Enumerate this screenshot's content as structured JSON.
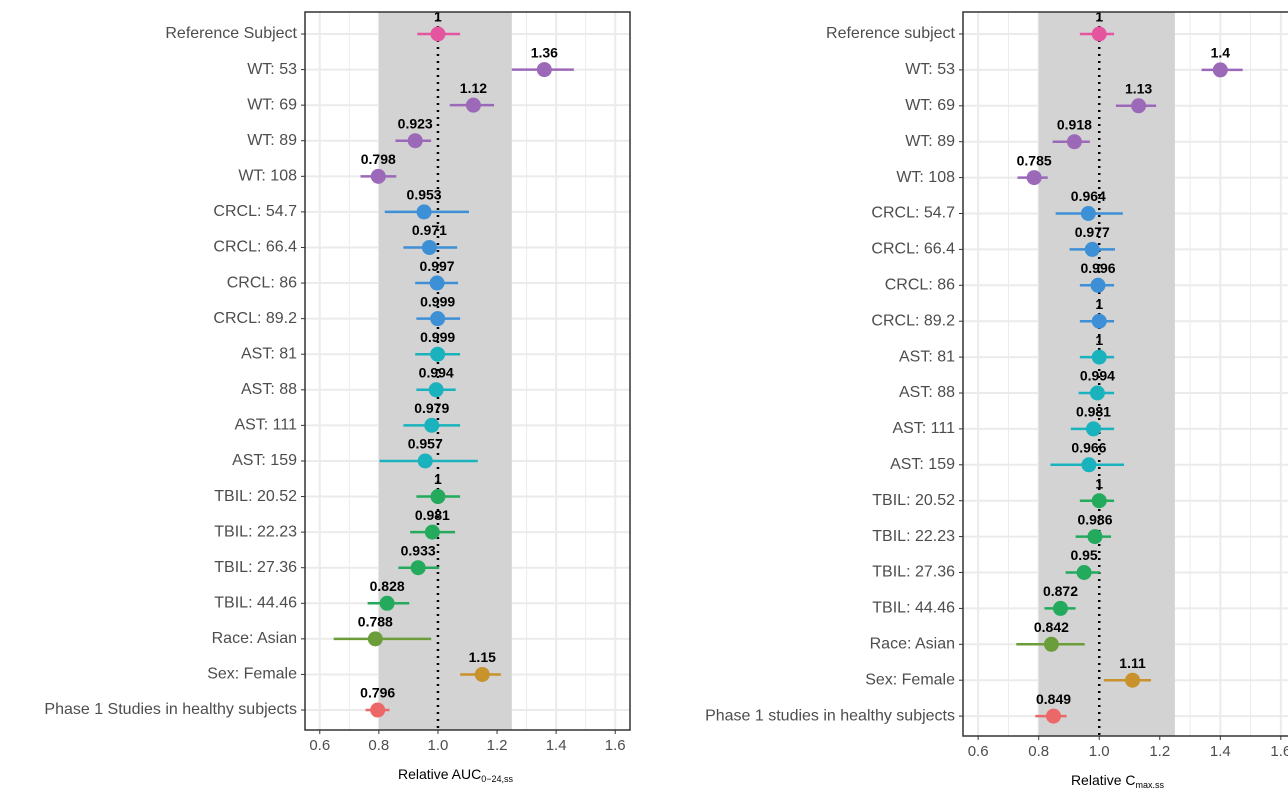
{
  "chart_data": [
    {
      "type": "forest",
      "categories": [
        "Reference Subject",
        "WT: 53",
        "WT: 69",
        "WT: 89",
        "WT: 108",
        "CRCL: 54.7",
        "CRCL: 66.4",
        "CRCL: 86",
        "CRCL: 89.2",
        "AST: 81",
        "AST: 88",
        "AST: 111",
        "AST: 159",
        "TBIL: 20.52",
        "TBIL: 22.23",
        "TBIL: 27.36",
        "TBIL: 44.46",
        "Race: Asian",
        "Sex: Female",
        "Phase 1 Studies in healthy subjects"
      ],
      "values": [
        1,
        1.36,
        1.12,
        0.923,
        0.798,
        0.953,
        0.971,
        0.997,
        0.999,
        0.999,
        0.994,
        0.979,
        0.957,
        1,
        0.981,
        0.933,
        0.828,
        0.788,
        1.15,
        0.796
      ],
      "lower": [
        0.93,
        1.25,
        1.04,
        0.856,
        0.738,
        0.82,
        0.883,
        0.923,
        0.927,
        0.923,
        0.927,
        0.883,
        0.802,
        0.927,
        0.906,
        0.866,
        0.762,
        0.647,
        1.075,
        0.755
      ],
      "upper": [
        1.075,
        1.46,
        1.19,
        0.977,
        0.859,
        1.105,
        1.065,
        1.068,
        1.075,
        1.075,
        1.06,
        1.075,
        1.135,
        1.075,
        1.058,
        1.004,
        0.903,
        0.977,
        1.213,
        0.836
      ],
      "colors": [
        "#e5559f",
        "#9b69b8",
        "#9b69b8",
        "#9b69b8",
        "#9b69b8",
        "#3d8fd6",
        "#3d8fd6",
        "#3d8fd6",
        "#3d8fd6",
        "#1ab3bd",
        "#1ab3bd",
        "#1ab3bd",
        "#1ab3bd",
        "#23aa5c",
        "#23aa5c",
        "#23aa5c",
        "#23aa5c",
        "#6b9e3a",
        "#c8922c",
        "#ec6868"
      ],
      "xlabel": "Relative AUC",
      "xlabel_sub": "0−24,ss",
      "xlim": [
        0.55,
        1.65
      ],
      "xticks": [
        0.6,
        0.8,
        {
          "value": 1,
          "label": "1.0"
        },
        1.2,
        1.4,
        1.6
      ],
      "band": [
        0.8,
        1.25
      ],
      "reference_line": 1,
      "grid": true
    },
    {
      "type": "forest",
      "categories": [
        "Reference subject",
        "WT: 53",
        "WT: 69",
        "WT: 89",
        "WT: 108",
        "CRCL: 54.7",
        "CRCL: 66.4",
        "CRCL: 86",
        "CRCL: 89.2",
        "AST: 81",
        "AST: 88",
        "AST: 111",
        "AST: 159",
        "TBIL: 20.52",
        "TBIL: 22.23",
        "TBIL: 27.36",
        "TBIL: 44.46",
        "Race: Asian",
        "Sex: Female",
        "Phase 1 studies in healthy subjects"
      ],
      "values": [
        1,
        1.4,
        1.13,
        0.918,
        0.785,
        0.964,
        0.977,
        0.996,
        1,
        1,
        0.994,
        0.981,
        0.966,
        1,
        0.986,
        0.95,
        0.872,
        0.842,
        1.11,
        0.849
      ],
      "lower": [
        0.936,
        1.338,
        1.055,
        0.846,
        0.73,
        0.856,
        0.902,
        0.936,
        0.936,
        0.936,
        0.932,
        0.906,
        0.839,
        0.936,
        0.922,
        0.889,
        0.819,
        0.726,
        1.015,
        0.789
      ],
      "upper": [
        1.049,
        1.474,
        1.188,
        0.969,
        0.83,
        1.078,
        1.052,
        1.049,
        1.049,
        1.049,
        1.049,
        1.049,
        1.082,
        1.049,
        1.039,
        1.002,
        0.922,
        0.952,
        1.171,
        0.892
      ],
      "colors": [
        "#e5559f",
        "#9b69b8",
        "#9b69b8",
        "#9b69b8",
        "#9b69b8",
        "#3d8fd6",
        "#3d8fd6",
        "#3d8fd6",
        "#3d8fd6",
        "#1ab3bd",
        "#1ab3bd",
        "#1ab3bd",
        "#1ab3bd",
        "#23aa5c",
        "#23aa5c",
        "#23aa5c",
        "#23aa5c",
        "#6b9e3a",
        "#c8922c",
        "#ec6868"
      ],
      "xlabel": "Relative C",
      "xlabel_sub": "max.ss",
      "xlim": [
        0.55,
        1.65
      ],
      "xticks": [
        0.6,
        0.8,
        {
          "value": 1,
          "label": "1.0"
        },
        1.2,
        1.4,
        1.6
      ],
      "band": [
        0.8,
        1.25
      ],
      "reference_line": 1,
      "grid": true
    }
  ]
}
